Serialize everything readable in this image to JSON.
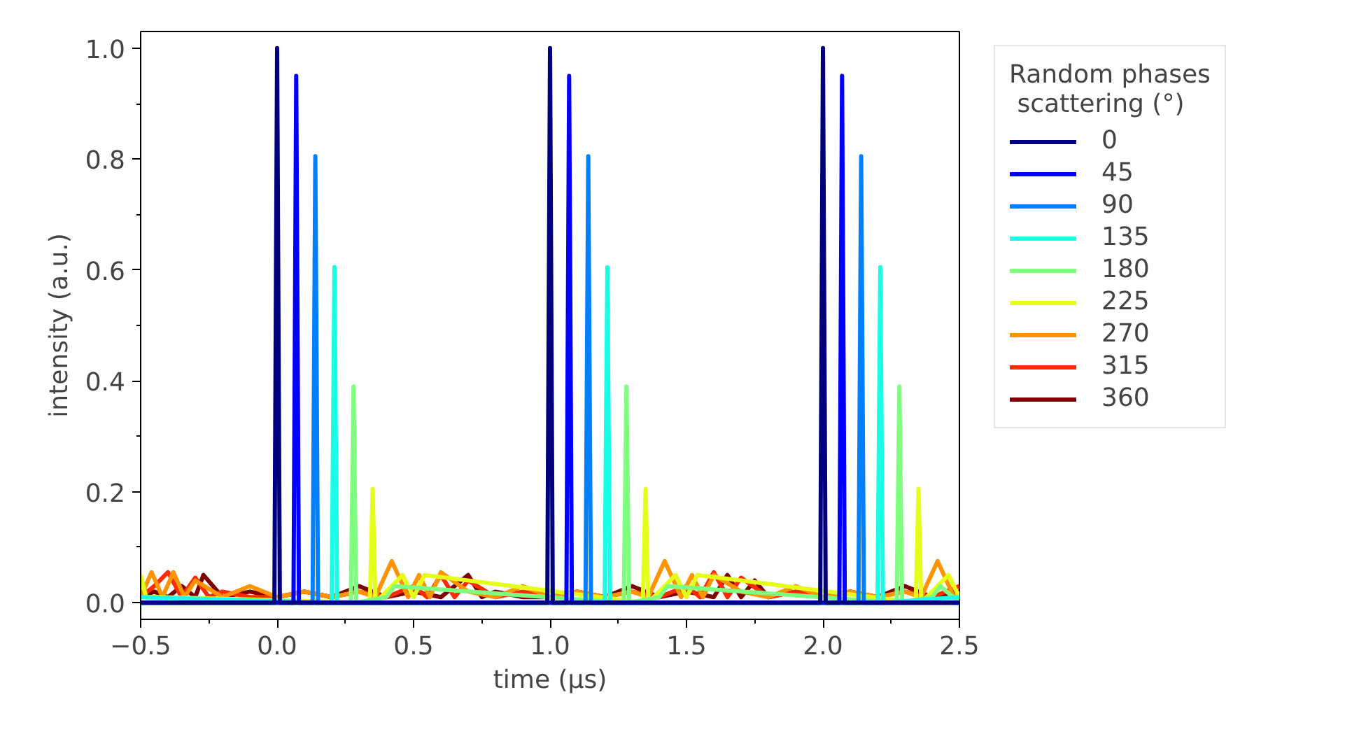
{
  "chart_data": {
    "type": "line",
    "xlabel": "time (μs)",
    "ylabel": "intensity (a.u.)",
    "legend_title": "Random phases\n scattering (°)",
    "legend": "right",
    "grid": false,
    "xlim": [
      -0.5,
      2.5
    ],
    "ylim": [
      -0.03,
      1.03
    ],
    "xticks": [
      {
        "value": -0.5,
        "label": "−0.5"
      },
      {
        "value": 0,
        "label": "0.0"
      },
      {
        "value": 0.5,
        "label": "0.5"
      },
      {
        "value": 1,
        "label": "1.0"
      },
      {
        "value": 1.5,
        "label": "1.5"
      },
      {
        "value": 2,
        "label": "2.0"
      },
      {
        "value": 2.5,
        "label": "2.5"
      }
    ],
    "yticks": [
      {
        "value": 0,
        "label": "0.0"
      },
      {
        "value": 0.2,
        "label": "0.2"
      },
      {
        "value": 0.4,
        "label": "0.4"
      },
      {
        "value": 0.6,
        "label": "0.6"
      },
      {
        "value": 0.8,
        "label": "0.8"
      },
      {
        "value": 1,
        "label": "1.0"
      }
    ],
    "series": [
      {
        "name": "360",
        "color": "#7f0000",
        "x": [
          -0.5,
          -0.45,
          -0.4,
          -0.35,
          -0.3,
          -0.27,
          -0.2,
          -0.1,
          0.0,
          0.1,
          0.2,
          0.3,
          0.4,
          0.5,
          0.6,
          0.7,
          0.75,
          0.8,
          0.9,
          1.0,
          1.1,
          1.2,
          1.3,
          1.4,
          1.5,
          1.6,
          1.65,
          1.7,
          1.75,
          1.8,
          1.9,
          2.0,
          2.1,
          2.2,
          2.3,
          2.4,
          2.5
        ],
        "values": [
          0.01,
          0.02,
          0.01,
          0.03,
          0.01,
          0.05,
          0.01,
          0.02,
          0.01,
          0.02,
          0.01,
          0.03,
          0.01,
          0.02,
          0.01,
          0.05,
          0.01,
          0.02,
          0.01,
          0.01,
          0.02,
          0.01,
          0.03,
          0.01,
          0.02,
          0.01,
          0.05,
          0.01,
          0.04,
          0.01,
          0.02,
          0.01,
          0.02,
          0.01,
          0.03,
          0.01,
          0.02
        ]
      },
      {
        "name": "315",
        "color": "#ff2a00",
        "x": [
          -0.5,
          -0.45,
          -0.4,
          -0.35,
          -0.3,
          -0.25,
          -0.2,
          -0.1,
          0.0,
          0.1,
          0.2,
          0.3,
          0.4,
          0.5,
          0.55,
          0.6,
          0.65,
          0.7,
          0.8,
          0.9,
          1.0,
          1.1,
          1.2,
          1.3,
          1.4,
          1.5,
          1.55,
          1.6,
          1.65,
          1.7,
          1.8,
          1.9,
          2.0,
          2.1,
          2.2,
          2.3,
          2.4,
          2.5
        ],
        "values": [
          0.01,
          0.03,
          0.055,
          0.01,
          0.045,
          0.01,
          0.02,
          0.01,
          0.01,
          0.02,
          0.01,
          0.02,
          0.01,
          0.03,
          0.01,
          0.05,
          0.01,
          0.04,
          0.01,
          0.02,
          0.01,
          0.02,
          0.01,
          0.02,
          0.01,
          0.03,
          0.01,
          0.055,
          0.01,
          0.045,
          0.01,
          0.02,
          0.01,
          0.02,
          0.01,
          0.02,
          0.01,
          0.03
        ]
      },
      {
        "name": "270",
        "color": "#ff9400",
        "x": [
          -0.5,
          -0.46,
          -0.42,
          -0.38,
          -0.34,
          -0.3,
          -0.2,
          -0.1,
          0.0,
          0.1,
          0.2,
          0.3,
          0.36,
          0.42,
          0.48,
          0.52,
          0.56,
          0.6,
          0.7,
          0.8,
          0.9,
          1.0,
          1.1,
          1.2,
          1.3,
          1.36,
          1.42,
          1.48,
          1.52,
          1.56,
          1.6,
          1.7,
          1.8,
          1.9,
          2.0,
          2.1,
          2.2,
          2.3,
          2.36,
          2.42,
          2.48,
          2.5
        ],
        "values": [
          0.01,
          0.055,
          0.01,
          0.055,
          0.01,
          0.04,
          0.01,
          0.03,
          0.01,
          0.02,
          0.01,
          0.02,
          0.01,
          0.075,
          0.01,
          0.05,
          0.01,
          0.055,
          0.02,
          0.01,
          0.03,
          0.01,
          0.02,
          0.01,
          0.02,
          0.01,
          0.075,
          0.01,
          0.05,
          0.01,
          0.05,
          0.02,
          0.01,
          0.03,
          0.01,
          0.02,
          0.01,
          0.02,
          0.01,
          0.075,
          0.01,
          0.02
        ]
      },
      {
        "name": "225",
        "color": "#e5ff19",
        "x": [
          -0.5,
          -0.48,
          -0.44,
          0.34,
          0.35,
          0.36,
          0.46,
          0.5,
          0.54,
          1.34,
          1.35,
          1.36,
          1.46,
          1.5,
          1.54,
          2.34,
          2.35,
          2.36,
          2.46,
          2.5
        ],
        "values": [
          0.05,
          0.01,
          0.01,
          0.0,
          0.205,
          0.0,
          0.05,
          0.01,
          0.05,
          0.0,
          0.205,
          0.0,
          0.05,
          0.01,
          0.05,
          0.0,
          0.205,
          0.0,
          0.05,
          0.01
        ]
      },
      {
        "name": "180",
        "color": "#7fff7f",
        "x": [
          -0.5,
          0.27,
          0.28,
          0.29,
          0.4,
          0.43,
          1.27,
          1.28,
          1.29,
          1.4,
          1.43,
          2.27,
          2.28,
          2.29,
          2.4,
          2.43,
          2.5
        ],
        "values": [
          0.0,
          0.0,
          0.39,
          0.0,
          0.01,
          0.03,
          0.0,
          0.39,
          0.0,
          0.01,
          0.03,
          0.0,
          0.39,
          0.0,
          0.01,
          0.03,
          0.0
        ]
      },
      {
        "name": "135",
        "color": "#19ffe5",
        "x": [
          -0.5,
          0.2,
          0.21,
          0.22,
          1.2,
          1.21,
          1.22,
          2.2,
          2.21,
          2.22,
          2.5
        ],
        "values": [
          0.01,
          0.0,
          0.605,
          0.0,
          0.0,
          0.605,
          0.0,
          0.0,
          0.605,
          0.0,
          0.01
        ]
      },
      {
        "name": "90",
        "color": "#007fff",
        "x": [
          -0.5,
          0.13,
          0.14,
          0.15,
          1.13,
          1.14,
          1.15,
          2.13,
          2.14,
          2.15,
          2.5
        ],
        "values": [
          0.0,
          0.0,
          0.805,
          0.0,
          0.0,
          0.805,
          0.0,
          0.0,
          0.805,
          0.0,
          0.0
        ]
      },
      {
        "name": "45",
        "color": "#0000ff",
        "x": [
          -0.5,
          0.06,
          0.07,
          0.08,
          1.06,
          1.07,
          1.08,
          2.06,
          2.07,
          2.08,
          2.5
        ],
        "values": [
          0.0,
          0.0,
          0.95,
          0.0,
          0.0,
          0.95,
          0.0,
          0.0,
          0.95,
          0.0,
          0.0
        ]
      },
      {
        "name": "0",
        "color": "#00007f",
        "x": [
          -0.5,
          -0.01,
          0.0,
          0.01,
          0.99,
          1.0,
          1.01,
          1.99,
          2.0,
          2.01,
          2.5
        ],
        "values": [
          0.0,
          0.0,
          1.0,
          0.0,
          0.0,
          1.0,
          0.0,
          0.0,
          1.0,
          0.0,
          0.0
        ]
      }
    ]
  }
}
